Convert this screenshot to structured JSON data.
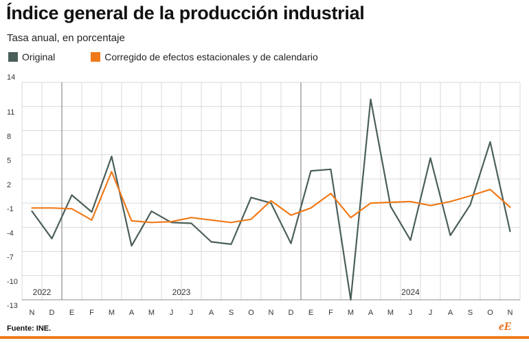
{
  "title": "Índice general de la producción industrial",
  "subtitle": "Tasa anual, en porcentaje",
  "source": "Fuente: INE.",
  "brand": "eE",
  "colors": {
    "original": "#4a5e5a",
    "corrected": "#f07a19",
    "grid": "#d9d9d9",
    "axis": "#8c8c8c"
  },
  "chart_data": {
    "type": "line",
    "x": [
      "N",
      "D",
      "E",
      "F",
      "M",
      "A",
      "M",
      "J",
      "J",
      "A",
      "S",
      "O",
      "N",
      "D",
      "E",
      "F",
      "M",
      "A",
      "M",
      "J",
      "J",
      "A",
      "S",
      "O",
      "N"
    ],
    "year_labels": [
      {
        "label": "2022",
        "start_index": 0
      },
      {
        "label": "2023",
        "start_index": 2
      },
      {
        "label": "2024",
        "start_index": 14
      }
    ],
    "yticks": [
      14,
      11,
      8,
      5,
      2,
      -1,
      -4,
      -7,
      -10,
      -13
    ],
    "ylim": [
      -13,
      14
    ],
    "grid": true,
    "legend_position": "top-left",
    "series": [
      {
        "name": "Original",
        "color": "#4a5e5a",
        "values": [
          -2.0,
          -5.4,
          0.0,
          -2.1,
          4.8,
          -6.3,
          -2.0,
          -3.4,
          -3.5,
          -5.8,
          -6.1,
          -0.3,
          -1.0,
          -6.0,
          3.0,
          3.2,
          -13.0,
          11.9,
          -1.4,
          -5.6,
          4.6,
          -5.0,
          -1.2,
          6.6,
          -4.5
        ]
      },
      {
        "name": "Corregido de efectos estacionales y de calendario",
        "color": "#f07a19",
        "values": [
          -1.6,
          -1.6,
          -1.7,
          -3.1,
          2.9,
          -3.2,
          -3.4,
          -3.3,
          -2.8,
          -3.1,
          -3.4,
          -3.0,
          -0.7,
          -2.5,
          -1.6,
          0.2,
          -2.8,
          -1.0,
          -0.9,
          -0.8,
          -1.3,
          -0.8,
          -0.1,
          0.7,
          -1.5
        ]
      }
    ]
  }
}
